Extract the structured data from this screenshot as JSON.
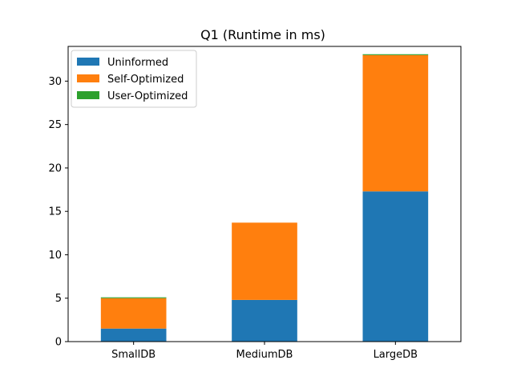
{
  "chart_data": {
    "type": "bar",
    "stacked": true,
    "title": "Q1 (Runtime in ms)",
    "xlabel": "",
    "ylabel": "",
    "categories": [
      "SmallDB",
      "MediumDB",
      "LargeDB"
    ],
    "series": [
      {
        "name": "Uninformed",
        "color": "#1f77b4",
        "values": [
          1.5,
          4.8,
          17.3
        ]
      },
      {
        "name": "Self-Optimized",
        "color": "#ff7f0e",
        "values": [
          3.5,
          8.9,
          15.7
        ]
      },
      {
        "name": "User-Optimized",
        "color": "#2ca02c",
        "values": [
          0.1,
          0.0,
          0.1
        ]
      }
    ],
    "ylim": [
      0,
      34.0
    ],
    "yticks": [
      0,
      5,
      10,
      15,
      20,
      25,
      30
    ],
    "legend_position": "top-left",
    "grid": false
  }
}
